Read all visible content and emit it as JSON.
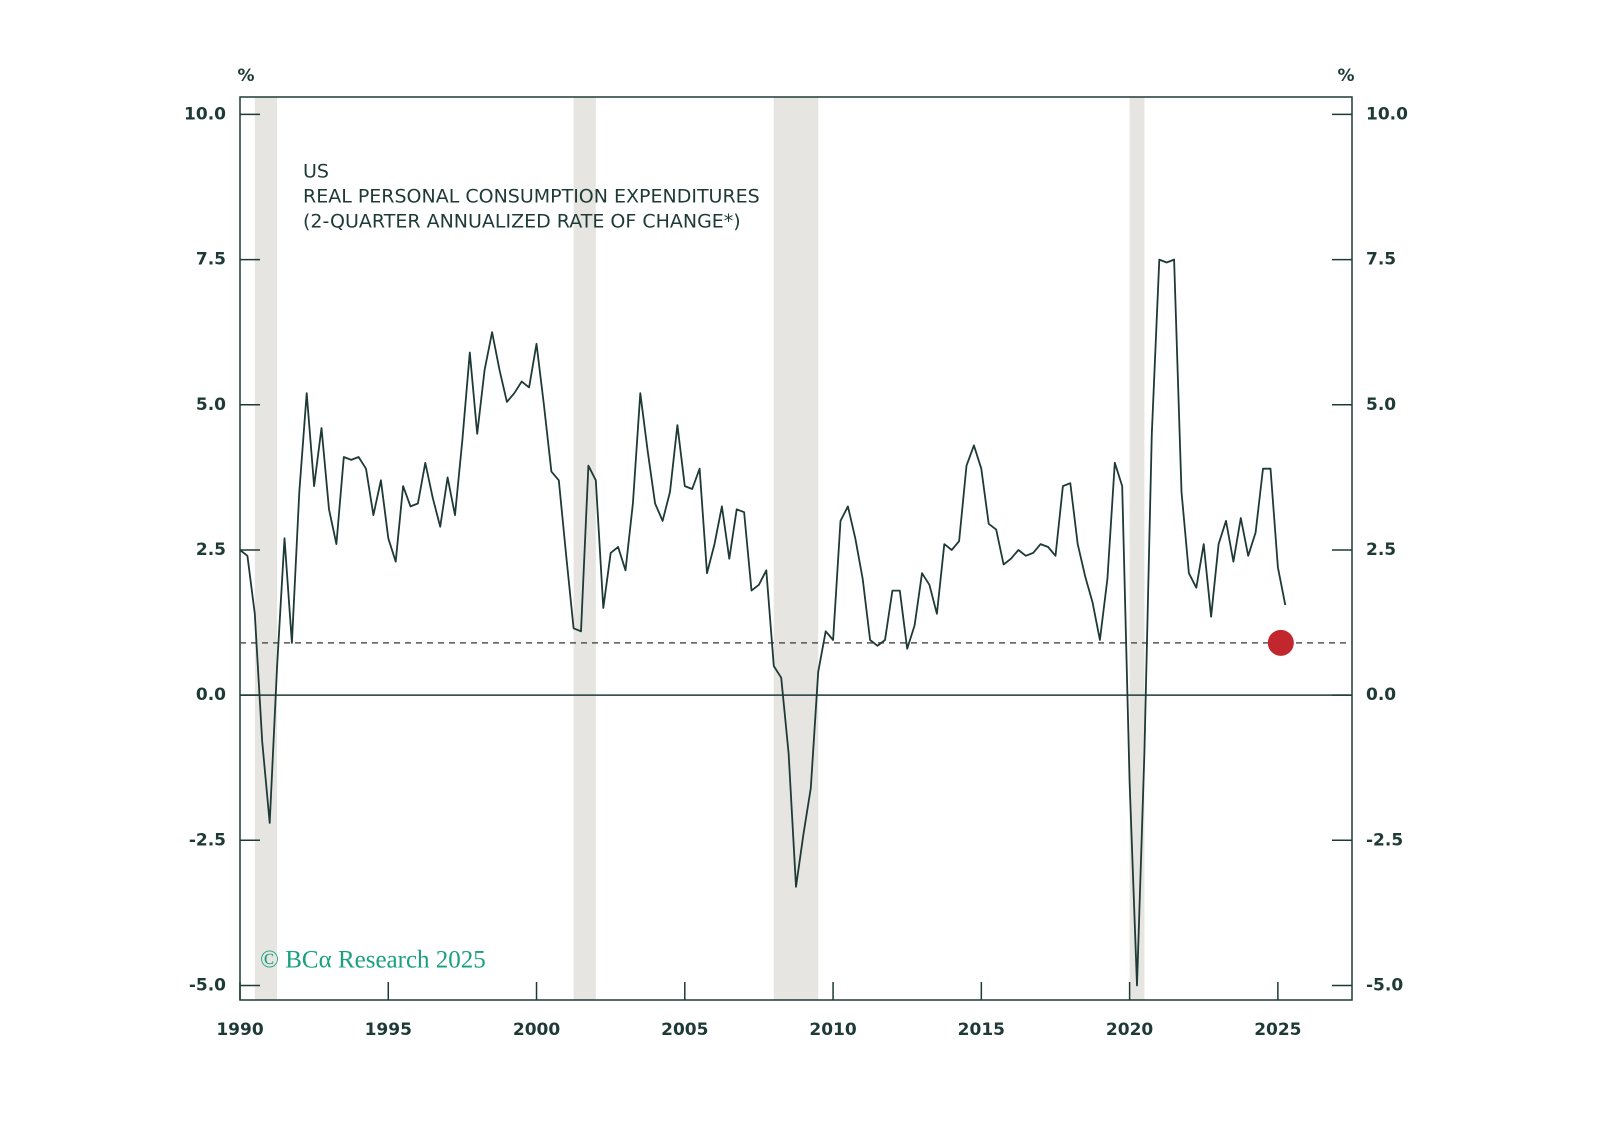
{
  "chart_data": {
    "type": "line",
    "title_lines": [
      "US",
      "REAL PERSONAL CONSUMPTION EXPENDITURES",
      "(2-QUARTER ANNUALIZED RATE OF CHANGE*)"
    ],
    "y_label": "%",
    "y2_label": "%",
    "watermark": "© BCα Research 2025",
    "color": "#1e3a36",
    "x": [
      1990,
      1990.25,
      1990.5,
      1990.75,
      1991,
      1991.25,
      1991.5,
      1991.75,
      1992,
      1992.25,
      1992.5,
      1992.75,
      1993,
      1993.25,
      1993.5,
      1993.75,
      1994,
      1994.25,
      1994.5,
      1994.75,
      1995,
      1995.25,
      1995.5,
      1995.75,
      1996,
      1996.25,
      1996.5,
      1996.75,
      1997,
      1997.25,
      1997.5,
      1997.75,
      1998,
      1998.25,
      1998.5,
      1998.75,
      1999,
      1999.25,
      1999.5,
      1999.75,
      2000,
      2000.25,
      2000.5,
      2000.75,
      2001,
      2001.25,
      2001.5,
      2001.75,
      2002,
      2002.25,
      2002.5,
      2002.75,
      2003,
      2003.25,
      2003.5,
      2003.75,
      2004,
      2004.25,
      2004.5,
      2004.75,
      2005,
      2005.25,
      2005.5,
      2005.75,
      2006,
      2006.25,
      2006.5,
      2006.75,
      2007,
      2007.25,
      2007.5,
      2007.75,
      2008,
      2008.25,
      2008.5,
      2008.75,
      2009,
      2009.25,
      2009.5,
      2009.75,
      2010,
      2010.25,
      2010.5,
      2010.75,
      2011,
      2011.25,
      2011.5,
      2011.75,
      2012,
      2012.25,
      2012.5,
      2012.75,
      2013,
      2013.25,
      2013.5,
      2013.75,
      2014,
      2014.25,
      2014.5,
      2014.75,
      2015,
      2015.25,
      2015.5,
      2015.75,
      2016,
      2016.25,
      2016.5,
      2016.75,
      2017,
      2017.25,
      2017.5,
      2017.75,
      2018,
      2018.25,
      2018.5,
      2018.75,
      2019,
      2019.25,
      2019.5,
      2019.75,
      2020,
      2020.25,
      2020.5,
      2020.75,
      2021,
      2021.25,
      2021.5,
      2021.75,
      2022,
      2022.25,
      2022.5,
      2022.75,
      2023,
      2023.25,
      2023.5,
      2023.75,
      2024,
      2024.25,
      2024.5,
      2024.75,
      2025,
      2025.25
    ],
    "values": [
      2.5,
      2.4,
      1.4,
      -0.8,
      -2.2,
      0.5,
      2.7,
      0.9,
      3.5,
      5.2,
      3.6,
      4.6,
      3.2,
      2.6,
      4.1,
      4.05,
      4.1,
      3.9,
      3.1,
      3.7,
      2.7,
      2.3,
      3.6,
      3.25,
      3.3,
      4.0,
      3.4,
      2.9,
      3.75,
      3.1,
      4.4,
      5.9,
      4.5,
      5.6,
      6.25,
      5.6,
      5.05,
      5.2,
      5.4,
      5.3,
      6.05,
      5.0,
      3.85,
      3.7,
      2.4,
      1.15,
      1.1,
      3.95,
      3.7,
      1.5,
      2.45,
      2.55,
      2.15,
      3.3,
      5.2,
      4.2,
      3.3,
      3.0,
      3.5,
      4.65,
      3.6,
      3.55,
      3.9,
      2.1,
      2.6,
      3.25,
      2.35,
      3.2,
      3.15,
      1.8,
      1.9,
      2.15,
      0.5,
      0.3,
      -1.0,
      -3.3,
      -2.4,
      -1.6,
      0.4,
      1.1,
      0.95,
      3.0,
      3.25,
      2.7,
      2.0,
      0.95,
      0.85,
      0.95,
      1.8,
      1.8,
      0.8,
      1.2,
      2.1,
      1.9,
      1.4,
      2.6,
      2.5,
      2.65,
      3.95,
      4.3,
      3.9,
      2.95,
      2.85,
      2.25,
      2.35,
      2.5,
      2.4,
      2.45,
      2.6,
      2.55,
      2.4,
      3.6,
      3.65,
      2.6,
      2.05,
      1.6,
      0.95,
      2.0,
      4.0,
      3.6,
      -1.5,
      -5.0,
      -1.0,
      4.5,
      7.5,
      7.45,
      7.5,
      3.5,
      2.1,
      1.85,
      2.6,
      1.35,
      2.6,
      3.0,
      2.3,
      3.05,
      2.4,
      2.8,
      3.9,
      3.9,
      2.2,
      1.55
    ],
    "recessions": [
      [
        1990.5,
        1991.25
      ],
      [
        2001.25,
        2002
      ],
      [
        2008,
        2009.5
      ],
      [
        2020,
        2020.5
      ]
    ],
    "recession_color": "#e6e5e1",
    "reference_line": 0.9,
    "marker": {
      "x": 2025.1,
      "y": 0.9,
      "color": "#c1272d"
    },
    "zero_line": true,
    "xlim": [
      1990,
      2027.5
    ],
    "ylim": [
      -5.25,
      10.3
    ],
    "xticks": [
      1990,
      1995,
      2000,
      2005,
      2010,
      2015,
      2020,
      2025
    ],
    "yticks": [
      {
        "value": 10,
        "label": "10.0"
      },
      {
        "value": 7.5,
        "label": "7.5"
      },
      {
        "value": 5,
        "label": "5.0"
      },
      {
        "value": 2.5,
        "label": "2.5"
      },
      {
        "value": 0,
        "label": "0.0"
      },
      {
        "value": -2.5,
        "label": "-2.5"
      },
      {
        "value": -5,
        "label": "-5.0"
      }
    ]
  }
}
